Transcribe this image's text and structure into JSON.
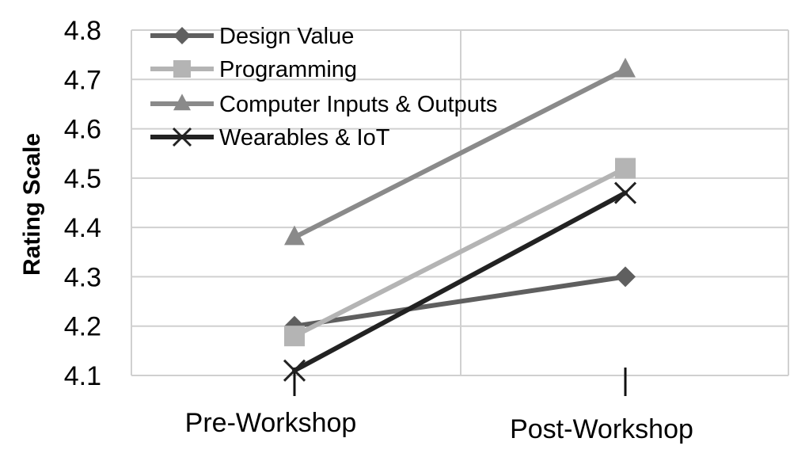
{
  "chart_data": {
    "type": "line",
    "title": "",
    "xlabel": "",
    "ylabel": "Rating Scale",
    "ylim": [
      4.1,
      4.8
    ],
    "yticks": [
      4.1,
      4.2,
      4.3,
      4.4,
      4.5,
      4.6,
      4.7,
      4.8
    ],
    "ytick_labels": [
      "4.1",
      "4.2",
      "4.3",
      "4.4",
      "4.5",
      "4.6",
      "4.7",
      "4.8"
    ],
    "categories": [
      "Pre-Workshop",
      "Post-Workshop"
    ],
    "grid": true,
    "legend_position": "top-left",
    "series": [
      {
        "name": "Design Value",
        "values": [
          4.2,
          4.3
        ],
        "color": "#5f5f5f",
        "marker": "diamond"
      },
      {
        "name": "Programming",
        "values": [
          4.18,
          4.52
        ],
        "color": "#b4b4b4",
        "marker": "square"
      },
      {
        "name": "Computer Inputs & Outputs",
        "values": [
          4.38,
          4.72
        ],
        "color": "#8a8a8a",
        "marker": "triangle"
      },
      {
        "name": "Wearables & IoT",
        "values": [
          4.11,
          4.47
        ],
        "color": "#222222",
        "marker": "x"
      }
    ]
  }
}
